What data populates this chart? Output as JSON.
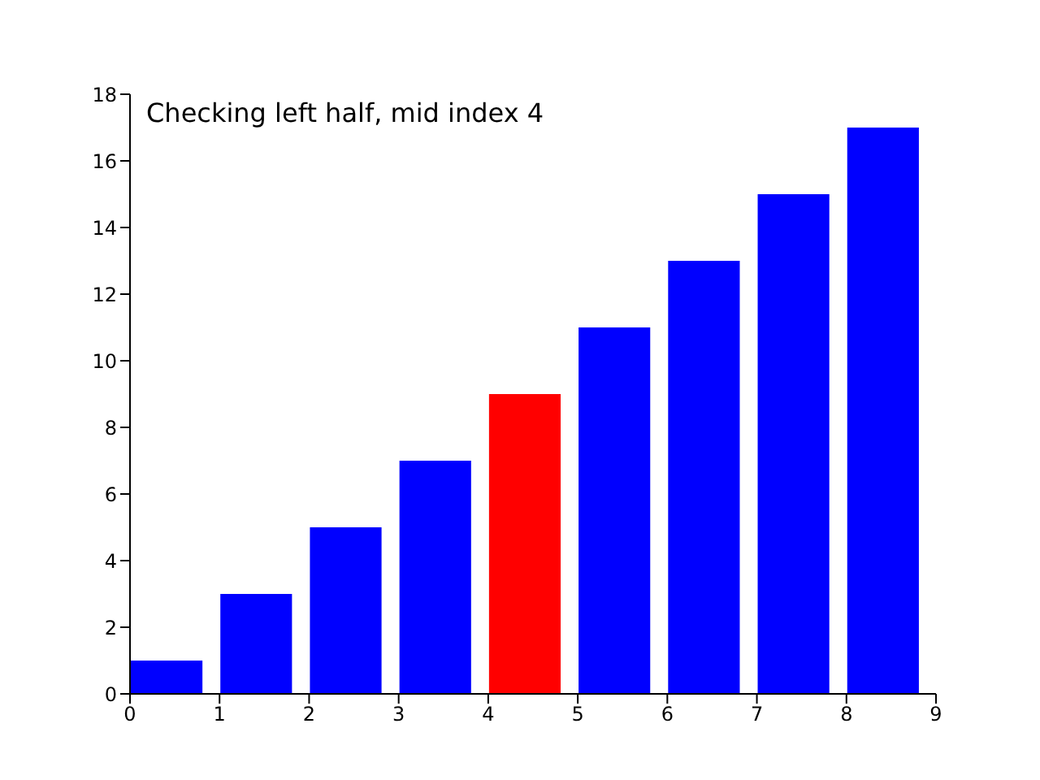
{
  "chart_data": {
    "type": "bar",
    "x": [
      0.4,
      1.4,
      2.4,
      3.4,
      4.4,
      5.4,
      6.4,
      7.4,
      8.4
    ],
    "values": [
      1,
      3,
      5,
      7,
      9,
      11,
      13,
      15,
      17
    ],
    "colors": [
      "#0000ff",
      "#0000ff",
      "#0000ff",
      "#0000ff",
      "#ff0000",
      "#0000ff",
      "#0000ff",
      "#0000ff",
      "#0000ff"
    ],
    "xlim": [
      0,
      9
    ],
    "xticks": [
      0,
      1,
      2,
      3,
      4,
      5,
      6,
      7,
      8,
      9
    ],
    "ylim": [
      0,
      18
    ],
    "yticks": [
      0,
      2,
      4,
      6,
      8,
      10,
      12,
      14,
      16,
      18
    ],
    "annotations": [
      "Checking left half, mid index 4"
    ]
  }
}
